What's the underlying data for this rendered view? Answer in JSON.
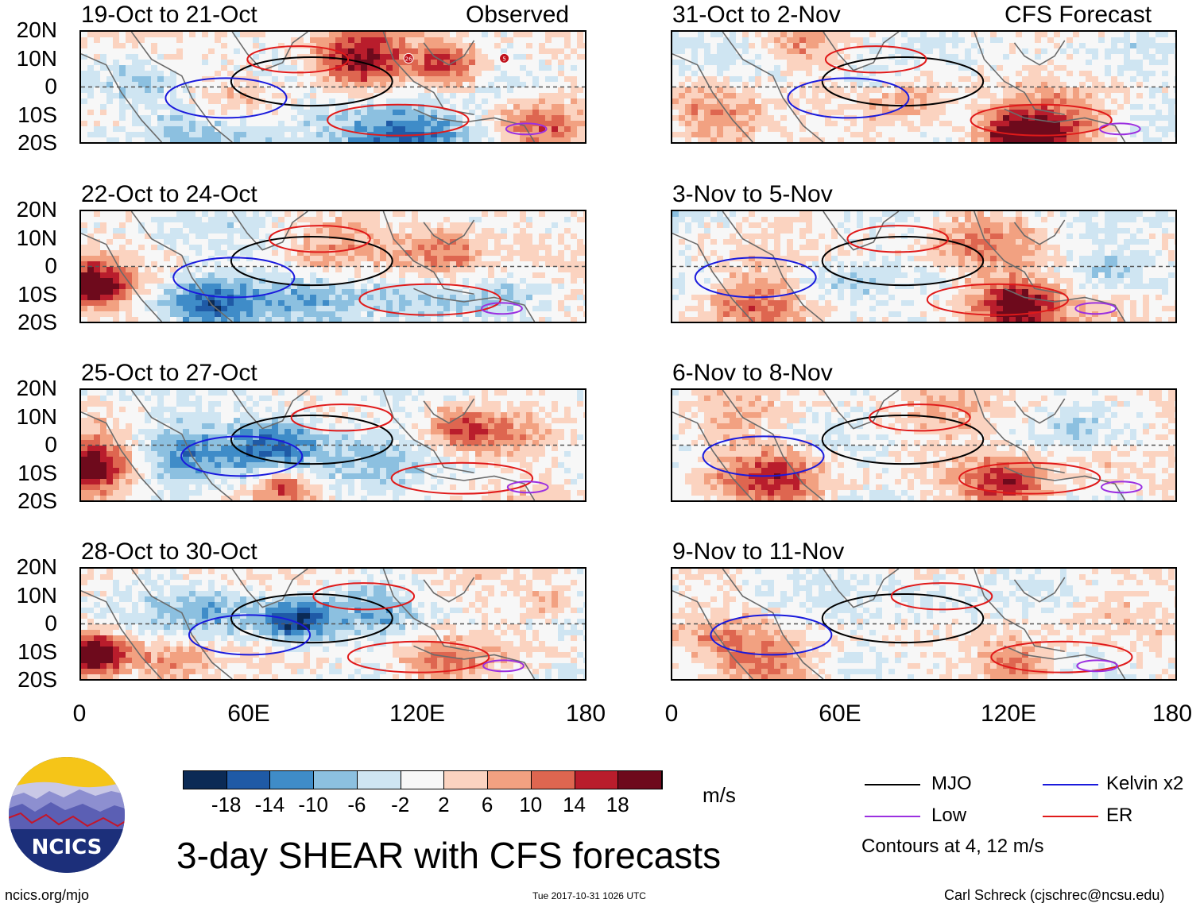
{
  "panels": [
    {
      "title": "19-Oct to 21-Oct",
      "tag": "Observed",
      "marks": [
        "26",
        "5"
      ]
    },
    {
      "title": "22-Oct to 24-Oct",
      "tag": "",
      "marks": []
    },
    {
      "title": "25-Oct to 27-Oct",
      "tag": "",
      "marks": []
    },
    {
      "title": "28-Oct to 30-Oct",
      "tag": "",
      "marks": []
    },
    {
      "title": "31-Oct to 2-Nov",
      "tag": "CFS Forecast",
      "marks": []
    },
    {
      "title": "3-Nov to 5-Nov",
      "tag": "",
      "marks": []
    },
    {
      "title": "6-Nov to 8-Nov",
      "tag": "",
      "marks": []
    },
    {
      "title": "9-Nov to 11-Nov",
      "tag": "",
      "marks": []
    }
  ],
  "lat_labels": [
    "20N",
    "10N",
    "0",
    "10S",
    "20S"
  ],
  "lon_labels": [
    "0",
    "60E",
    "120E",
    "180"
  ],
  "colorbar": {
    "colors": [
      "#0b2a55",
      "#1f5aa6",
      "#3f8cc8",
      "#8cc0e0",
      "#cfe5f2",
      "#f7f7f7",
      "#fbd3c0",
      "#f2a181",
      "#de6650",
      "#b91d2c",
      "#6e0a1c"
    ],
    "ticks": [
      "-18",
      "-14",
      "-10",
      "-6",
      "-2",
      "2",
      "6",
      "10",
      "14",
      "18"
    ],
    "units": "m/s"
  },
  "legend": {
    "mjo": {
      "label": "MJO",
      "color": "#000000"
    },
    "kelvin": {
      "label": "Kelvin x2",
      "color": "#1a1adc"
    },
    "low": {
      "label": "Low",
      "color": "#9b30e0"
    },
    "er": {
      "label": "ER",
      "color": "#e01a1a"
    },
    "note": "Contours at 4, 12 m/s"
  },
  "logo": {
    "text": "NCICS"
  },
  "main_title": "3-day SHEAR with CFS forecasts",
  "footer": {
    "left": "ncics.org/mjo",
    "center": "Tue 2017-10-31 1026 UTC",
    "right": "Carl Schreck (cjschrec@ncsu.edu)"
  }
}
